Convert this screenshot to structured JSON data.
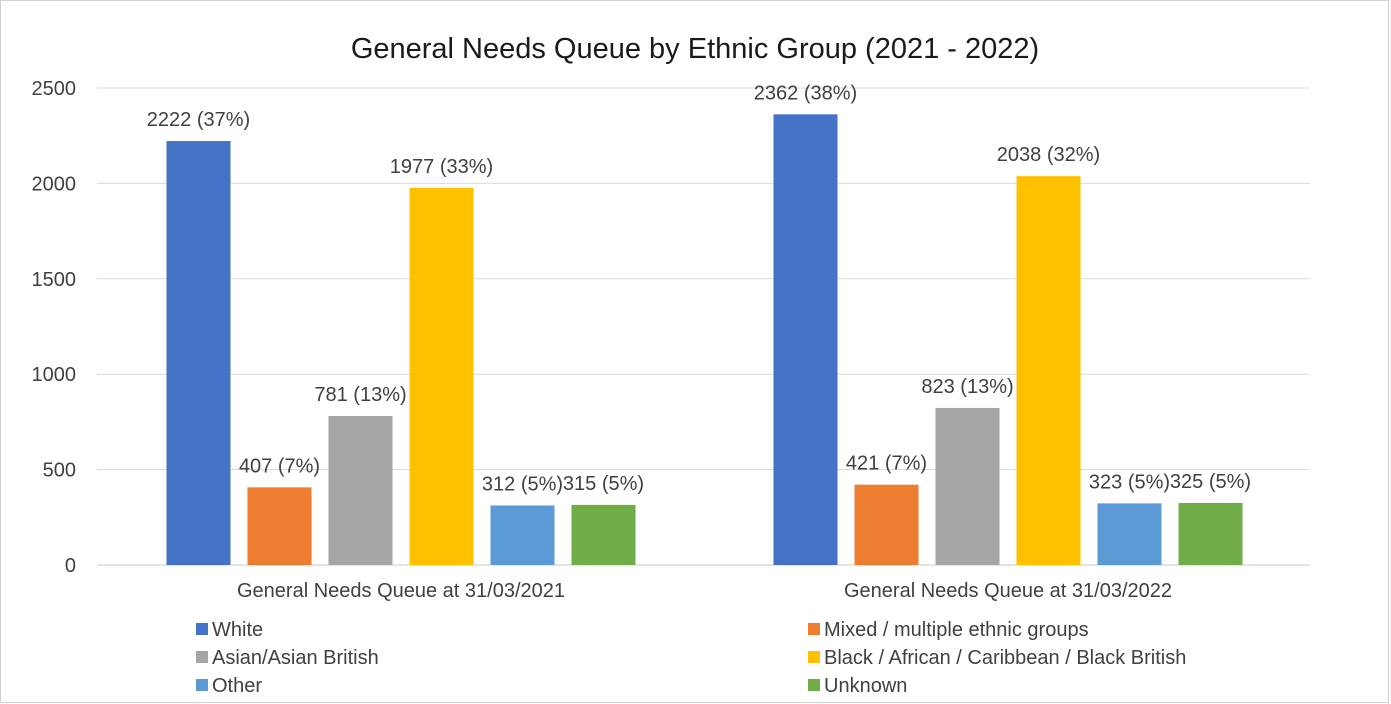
{
  "chart_data": {
    "type": "bar",
    "title": "General Needs Queue by Ethnic Group (2021 - 2022)",
    "xlabel": "",
    "ylabel": "",
    "ylim": [
      0,
      2500
    ],
    "yticks": [
      0,
      500,
      1000,
      1500,
      2000,
      2500
    ],
    "grid": true,
    "legend_position": "bottom",
    "categories": [
      "General Needs Queue at 31/03/2021",
      "General Needs Queue at 31/03/2022"
    ],
    "series": [
      {
        "name": "White",
        "color": "#4472C4",
        "values": [
          2222,
          2362
        ],
        "labels": [
          "2222 (37%)",
          "2362 (38%)"
        ]
      },
      {
        "name": "Mixed / multiple ethnic groups",
        "color": "#ED7D31",
        "values": [
          407,
          421
        ],
        "labels": [
          "407 (7%)",
          "421 (7%)"
        ]
      },
      {
        "name": "Asian/Asian British",
        "color": "#A5A5A5",
        "values": [
          781,
          823
        ],
        "labels": [
          "781 (13%)",
          "823 (13%)"
        ]
      },
      {
        "name": "Black / African / Caribbean / Black British",
        "color": "#FFC000",
        "values": [
          1977,
          2038
        ],
        "labels": [
          "1977 (33%)",
          "2038 (32%)"
        ]
      },
      {
        "name": "Other",
        "color": "#5B9BD5",
        "values": [
          312,
          323
        ],
        "labels": [
          "312 (5%)",
          "323 (5%)"
        ]
      },
      {
        "name": "Unknown",
        "color": "#70AD47",
        "values": [
          315,
          325
        ],
        "labels": [
          "315 (5%)",
          "325 (5%)"
        ]
      }
    ]
  }
}
